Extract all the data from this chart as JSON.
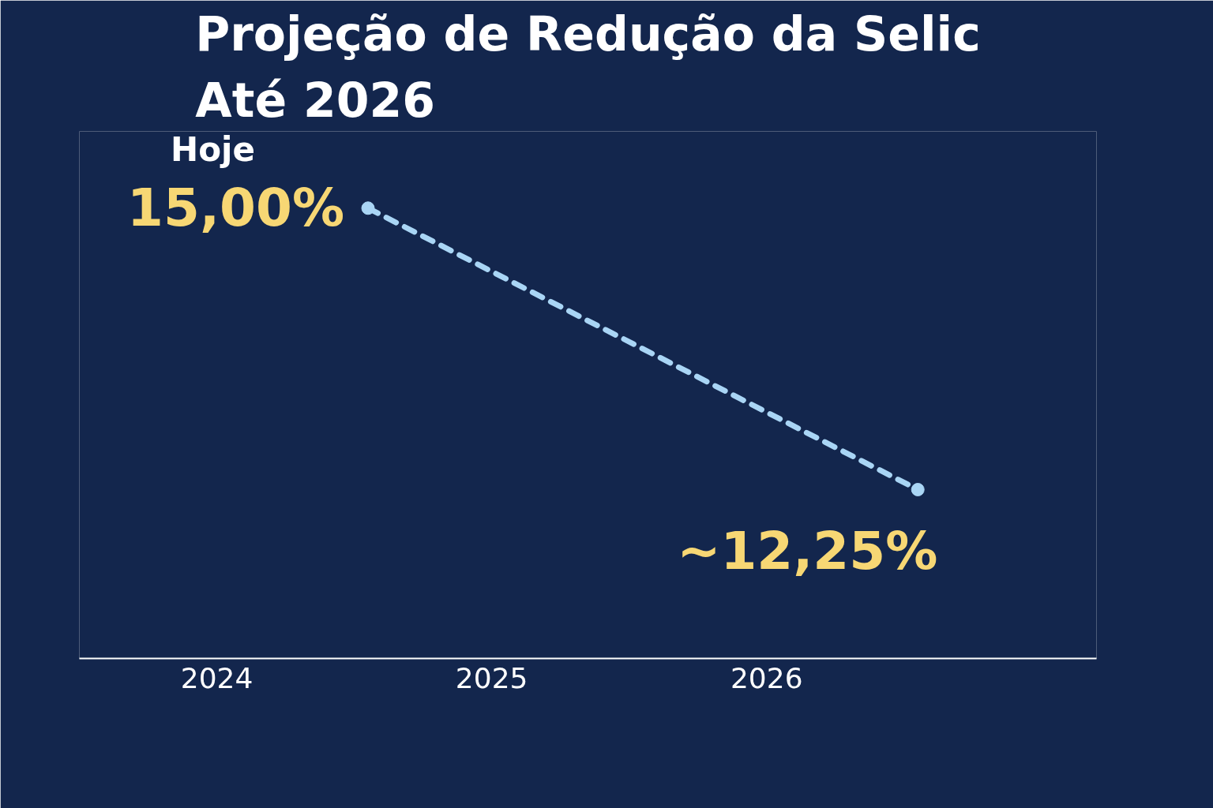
{
  "chart_data": {
    "type": "line",
    "title": "Projeção de Redução da Selic\nAté 2026",
    "annotations": [
      "Hoje"
    ],
    "x": [
      2024.55,
      2026.55
    ],
    "series": [
      {
        "color": "#a9d5f5",
        "values": [
          15.0,
          12.25
        ],
        "value_labels": [
          "15,00%",
          "~12,25%"
        ]
      }
    ],
    "xlim": [
      2023.5,
      2027.2
    ],
    "xticks": [
      2024,
      2025,
      2026
    ],
    "marker": "circle",
    "line_style": "dashed",
    "tick_labels": "x"
  }
}
